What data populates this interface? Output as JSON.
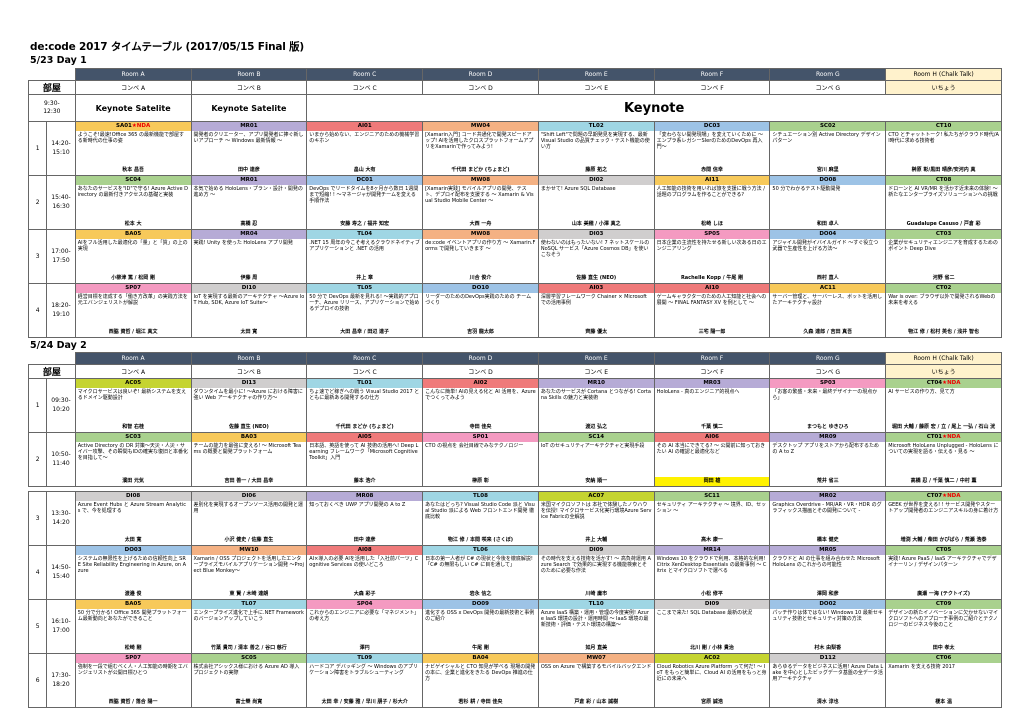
{
  "title": "de:code 2017 タイムテーブル (2017/05/15 Final 版)",
  "rooms": [
    "Room A",
    "Room B",
    "Room C",
    "Room D",
    "Room E",
    "Room F",
    "Room G",
    "Room H (Chalk Talk)"
  ],
  "corners": [
    "コンベ A",
    "コンベ B",
    "コンベ C",
    "コンベ D",
    "コンベ E",
    "コンベ F",
    "コンベ G",
    "いちょう"
  ],
  "bukaku": "部屋",
  "colors": {
    "yellow": "#f7c95a",
    "purple": "#b6abd6",
    "red": "#ef7a7a",
    "orange": "#f4b183",
    "cyan": "#9fd6e4",
    "blue": "#9dc3e6",
    "green": "#a9d18e",
    "gray": "#d0cece",
    "lime": "#c5d431",
    "teal": "#8fd9c8",
    "pink": "#f49ac1",
    "header": "#44546a",
    "chalk": "#fff2cc"
  },
  "days": [
    {
      "title": "5/23 Day 1",
      "keynote": {
        "time": "9:30-\n12:30",
        "room_a": "Keynote Satelite",
        "room_b": "Keynote Satelite",
        "main": "Keynote"
      },
      "rows": [
        {
          "n": "1",
          "time": "14:20-\n15:10",
          "s": [
            {
              "c": "SA01",
              "tag": "★NDA",
              "col": "yellow",
              "d": "ようこそ!最速!Office 365 の最新機能で部屋する新時代の仕事の姿",
              "sp": "秋本 昌吾"
            },
            {
              "c": "MR01",
              "col": "purple",
              "d": "開発者のクリエーター、アプリ開発者に捧ぐ新しいアプローチ ～ Windows 最新情報 ～",
              "sp": "田中 達彦"
            },
            {
              "c": "AI01",
              "col": "red",
              "d": "いまから始めない、エンジニアのための機械学習のキホン",
              "sp": "畠山 大有"
            },
            {
              "c": "MW04",
              "col": "orange",
              "d": "[Xamarin入門] コード共通化で開発スピードアップ! AIを活用したクロスプラットフォームアプリをXamarinで作ってみよう!",
              "sp": "千代田 まどか (ちょまど)"
            },
            {
              "c": "TL02",
              "col": "cyan",
              "d": "\"Shift Left\"で問題の早期発見を実現する、最新 Visual Studio の品質チェック・テスト機能の使い方",
              "sp": "藤原 拓之"
            },
            {
              "c": "DC03",
              "col": "blue",
              "d": "「変わらない開発現場」を変えていくために ～エンプラ系レガシーSIerのためのDevOps 再入門～",
              "sp": "赤間 信幸"
            },
            {
              "c": "SC02",
              "col": "green",
              "d": "シチュエーション別 Active Directory デザインパターン",
              "sp": "宮川 麻里"
            },
            {
              "c": "CT10",
              "col": "green",
              "d": "CTO とチャットトーク! 私たちがクラウド時代/AI時代に求める技術者",
              "sp": "榊原 彰/黒田 晴彦/安河内 真"
            }
          ]
        },
        {
          "n": "2",
          "time": "15:40-\n16:30",
          "s": [
            {
              "c": "SC04",
              "col": "green",
              "d": "あなたのサービスを\"ID\"で守る! Azure Active Directory の最新付きアクセスの基礎と実装",
              "sp": "松本 大"
            },
            {
              "c": "MR01",
              "col": "purple",
              "d": "本気で始める HoloLens・プラン・設計・開発の進め方 ～",
              "sp": "高橋 忍"
            },
            {
              "c": "DC01",
              "col": "blue",
              "d": "DevOps でリードタイムを8ヶ月から数日 1週間まで短縮! ! ～マネージャが開発チームを変える手順作法",
              "sp": "安藤 寿之 / 福井 知宏"
            },
            {
              "c": "MW08",
              "col": "orange",
              "d": "[Xamarin実践] モバイルアプリの開発、テスト、デプロイ配布を支援する ～ Xamarin & Visual Studio Mobile Center ～",
              "sp": "大西 一舟"
            },
            {
              "c": "DI02",
              "col": "gray",
              "d": "まかせて! Azure SQL Database",
              "sp": "山本 美穂 / 小澤 真之"
            },
            {
              "c": "AI11",
              "col": "yellow",
              "d": "人工知能の技術を用いれば旅を支援に戦う方法 / 話題のプログラムを作ることができる?",
              "sp": "松崎 しほ"
            },
            {
              "c": "DO08",
              "col": "blue",
              "d": "50 分でわかるテスト駆動開発",
              "sp": "和田 卓人"
            },
            {
              "c": "CT08",
              "col": "green",
              "d": "ドローンと AI VR/MR を活かす近未来の体験! ～ 新たなエンタープライズソリューションへの挑戦",
              "sp": "Guadalupe Casuso / 戸倉 彩"
            }
          ]
        },
        {
          "n": "3",
          "time": "17:00-\n17:50",
          "s": [
            {
              "c": "BA05",
              "col": "yellow",
              "d": "AIをフル活用した最適化の「量」と「質」の上の実現",
              "sp": "小柳津 篤 / 松岡 剛"
            },
            {
              "c": "MR04",
              "col": "purple",
              "d": "実践! Unity を使った HoloLens アプリ開発",
              "sp": "伊藤 周"
            },
            {
              "c": "TL04",
              "col": "cyan",
              "d": ".NET 15 周年の今こそ考えるクラウドネイティブ アプリケーションと .NET の活用",
              "sp": "井上 章"
            },
            {
              "c": "MW08",
              "col": "orange",
              "d": "de:code イベントアプリの作り方 ～ Xamarin.Forms で開発していきます ～",
              "sp": "川合 俊介"
            },
            {
              "c": "DI03",
              "col": "gray",
              "d": "使わないのはもったいない! 7 ネットスケールの NoSQL サービス「Azure Cosmos DB」を使いこなそう",
              "sp": "佐藤 直生 (NEO)"
            },
            {
              "c": "SP05",
              "col": "pink",
              "d": "日本企業の主流性を持たせる新しい次ある日のエンジニアリング",
              "sp": "Rachelle Kopp / 牛尾 剛"
            },
            {
              "c": "DO04",
              "col": "blue",
              "d": "アジャイル開発がイバイルガイド ～すぐ役立つ武器で生産性を上げる方法～",
              "sp": "西村 直人"
            },
            {
              "c": "CT03",
              "col": "green",
              "d": "企業がセキュリティエンジニアを育成するためのポイント Deep Dive",
              "sp": "河野 省二"
            }
          ]
        },
        {
          "n": "4",
          "time": "18:20-\n19:10",
          "s": [
            {
              "c": "SP07",
              "col": "pink",
              "d": "経営目標を達成する「働き方改革」の実践方法を元エバンジェリストが解説",
              "sp": "西脇 資哲 / 堀江 真文"
            },
            {
              "c": "DI10",
              "col": "gray",
              "d": "IoT を実現する最新のアーキテクチャ ～Azure IoT Hub, SDK, Azure IoT Suite～",
              "sp": "太田 寛"
            },
            {
              "c": "TL05",
              "col": "cyan",
              "d": "50 分で DevOps 最新を見れる! ～実践的アプローチ、Azure リリース、アプリケーションで始めるデプロイの技術",
              "sp": "大田 昌幸 / 田辺 達子"
            },
            {
              "c": "DO10",
              "col": "blue",
              "d": "リーダーのためのDevOps実践のための チームづくり",
              "sp": "吉羽 龍太郎"
            },
            {
              "c": "AI03",
              "col": "red",
              "d": "深層学習フレームワーク Chainer × Microsoft での活用事例",
              "sp": "齊藤 優太"
            },
            {
              "c": "AI10",
              "col": "red",
              "d": "ゲームキャラクターのための人工知能と社会への展開 ～ FINAL FANTASY XV を例として ～",
              "sp": "三宅 陽一郎"
            },
            {
              "c": "AC11",
              "col": "yellow",
              "d": "サーバー管理と、サーバーレス、ボットを活用したアーキテクチャ設計",
              "sp": "久森 達郎 / 吉田 真吾"
            },
            {
              "c": "CT02",
              "col": "green",
              "d": "War is over: ブラウザ以外で開発されるWebの未来を考える",
              "sp": "物江 修 / 松村 英也 / 浅井 智也"
            }
          ]
        }
      ]
    },
    {
      "title": "5/24 Day 2",
      "rows": [
        {
          "n": "1",
          "time": "09:30-\n10:20",
          "s": [
            {
              "c": "AC05",
              "col": "lime",
              "d": "マイクロサービスは良いぞ! 最新システムを支えるドメイン駆動設計",
              "sp": "和智 右桂"
            },
            {
              "c": "DI13",
              "col": "gray",
              "d": "ダウンタイムを最小に! ～Azure における障害に強い Web アーキテクチャの作り方～",
              "sp": "佐藤 直生 (NEO)"
            },
            {
              "c": "TL01",
              "col": "cyan",
              "d": "ちょ速でど稼ぎへの戦う Visual Studio 2017 とともに最新ある開発するの仕方",
              "sp": "千代田 まどか (ちょまど)"
            },
            {
              "c": "AI02",
              "col": "red",
              "d": "こんなに簡単! AIの見える化と AI 活用を、Azure でつくってみよう",
              "sp": "寺田 佳央"
            },
            {
              "c": "MR10",
              "col": "purple",
              "d": "あなたのサービスが Cortana とつながる! Cortana Skills の魅力と実装術",
              "sp": "渡辺 弘之"
            },
            {
              "c": "MR03",
              "col": "purple",
              "d": "HoloLens - 真のエンジニア的視点へ",
              "sp": "千葉 慎二"
            },
            {
              "c": "SP03",
              "col": "pink",
              "d": "「お客の繁盛・未来・最終デザイナーの現点から」",
              "sp": "まつもと ゆきひろ"
            },
            {
              "c": "CT04",
              "tag": "★NDA",
              "col": "green",
              "d": "AI サービスの作り方、見て方",
              "sp": "堀田 大輔 / 藤原 宏 / 立 / 尾上 一弘 / 石山 洸"
            }
          ]
        },
        {
          "n": "2",
          "time": "10:50-\n11:40",
          "s": [
            {
              "c": "SC03",
              "col": "green",
              "d": "Active Directory の DR 対策～天災・人災・サイバー攻撃、その瞬間もIDの確実な復旧と本番化を目指して～",
              "sp": "濱田 元気"
            },
            {
              "c": "BA03",
              "col": "yellow",
              "d": "チームの能力を最強に変える! ～ Microsoft Teams の概要と開発プラットフォーム",
              "sp": "吉田 善一 / 大田 昌幸"
            },
            {
              "c": "AI05",
              "col": "red",
              "d": "日本語、英語を使って AI 技術の活用へ! Deep Learning フレームワーク「Microsoft Cognitive Toolkit」入門",
              "sp": "藤本 浩介"
            },
            {
              "c": "SP01",
              "col": "pink",
              "d": "CTO の視点を 会社目線でみなテクノロジー",
              "sp": "榊原 彰"
            },
            {
              "c": "SC14",
              "col": "green",
              "d": "IoT のセキュリティアーキテクチャと実現手段",
              "sp": "安納 順一"
            },
            {
              "c": "AI06",
              "col": "red",
              "d": "その AI 本当にできてる? ～ 公開前に知っておきたい AI の確認と最適化など",
              "sp": "岡田 雄",
              "hi": true
            },
            {
              "c": "MR09",
              "col": "purple",
              "d": "デスクトップ アプリをストアから配布するための A to Z",
              "sp": "荒井 省三"
            },
            {
              "c": "CT01",
              "tag": "★NDA",
              "col": "green",
              "d": "Microsoft HoloLens Unplugged - HoloLens についての実現を語る・伝える・見る ～",
              "sp": "高橋 忍 / 千葉 慎二 / 中村 薫"
            }
          ]
        },
        {
          "gap": true
        },
        {
          "n": "3",
          "time": "13:30-\n14:20",
          "s": [
            {
              "c": "DI08",
              "col": "gray",
              "d": "Azure Event Hubs と Azure Stream Analytics で、今を処理する",
              "sp": "太田 寛"
            },
            {
              "c": "DI06",
              "col": "gray",
              "d": "差別化を実現するオープンソース活用の開発と運用",
              "sp": "小沢 健史 / 佐藤 直生"
            },
            {
              "c": "MR08",
              "col": "purple",
              "d": "知っておくべき UWP アプリ開発の A to Z",
              "sp": "田中 達彦"
            },
            {
              "c": "TL08",
              "col": "cyan",
              "d": "あなたはどっち? Visual Studio Code 派と Visual Studio 派による Web フロントエンド開発 徹底比較",
              "sp": "物江 修 / 本間 咲来 (さくぼ)"
            },
            {
              "c": "AC07",
              "col": "lime",
              "d": "米国マイクロソフトは 本社で体験したノウハウを伝授! マイクロサービス化実行環境Azure Service Fabricの全解説",
              "sp": "井上 大輔"
            },
            {
              "c": "SC11",
              "col": "green",
              "d": "セキュリティ アーキテクチャ ～ 境界、ID、セッション ～",
              "sp": "高木 康一"
            },
            {
              "c": "MR02",
              "col": "purple",
              "d": "Graphics Overdrive - MR/AR・VR・HDR のグラフィックス描画とその開発について -",
              "sp": "橋本 健史"
            },
            {
              "c": "CT07",
              "tag": "★NDA",
              "col": "green",
              "d": "GEEK が世界を変える! ! サービス開発やスタートアップ開発者のエンジニアスキルの身に着け方",
              "sp": "増渕 大輔 / 柴田 かぴばら / 荒瀬 浩泰"
            }
          ]
        },
        {
          "n": "4",
          "time": "14:50-\n15:40",
          "s": [
            {
              "c": "DO03",
              "col": "blue",
              "d": "システムの無限性を上げるための信頼性向上 SRE Site Reliability Engineering in Azure, on Azure",
              "sp": "渡邉 俊"
            },
            {
              "c": "MW10",
              "col": "orange",
              "d": "Xamarin / OSS プロジェクトを活用したエンタープライズモバイルアプリケーション開発 ～Project Blue Monkey～",
              "sp": "東 賢 / 木崎 達朗"
            },
            {
              "c": "AI08",
              "col": "red",
              "d": "AI×導入の必要 AIを活用した「入社前パーツ」Cognitive Services の使いどころ",
              "sp": "大森 彩子"
            },
            {
              "c": "TL06",
              "col": "cyan",
              "d": "日本の第一人者が C# の現状と今後を徹底解説! 「C# の無限もしい C# に目を通して」",
              "sp": "岩永 信之"
            },
            {
              "c": "DI09",
              "col": "gray",
              "d": "その時代を支える技術を活かす! ～ 高負荷運用 Azure Search で効果的に実現する機能検索とそのために必要な作法",
              "sp": "川崎 庸市"
            },
            {
              "c": "MR14",
              "col": "purple",
              "d": "Windows 10 をクラウドで利用、本格的な利用! Citrix XenDesktop Essentials の最新事例 ～ Citrix とマイクロソフトで選べる",
              "sp": "小松 修平"
            },
            {
              "c": "MR05",
              "col": "purple",
              "d": "クラウドと AI の仕事を組み合わせた Microsoft HoloLens のこれからの可能性",
              "sp": "澤岡 和彦"
            },
            {
              "c": "CT05",
              "col": "green",
              "d": "実践! Azure PaaS / IaaS アーキテクチャでデザイナーリン / デザインパターン",
              "sp": "廣瀬 一海 (テクトイズ)"
            }
          ]
        },
        {
          "n": "5",
          "time": "16:10-\n17:00",
          "s": [
            {
              "c": "BA05",
              "col": "yellow",
              "d": "50 分で分かる! Office 365 開発プラットフォーム最新動向とあなたができること",
              "sp": "松崎 剛"
            },
            {
              "c": "TL07",
              "col": "cyan",
              "d": "エンタープライズ進化で上手に.NET Framework のバージョンアップしていこう",
              "sp": "竹葉 貴司 / 清本 善之 / 谷口 慈行"
            },
            {
              "c": "SP04",
              "col": "pink",
              "d": "これからのエンジニアに必要な「マネジメント」の考え方",
              "sp": "澤円"
            },
            {
              "c": "DO09",
              "col": "blue",
              "d": "進化する OSS x DevOps 開発の最新技術と事例のご紹介",
              "sp": "牛尾 剛"
            },
            {
              "c": "TL10",
              "col": "cyan",
              "d": "Azure IaaS 構築・運用・管理の今度実例! Azure IaaS 環境の設計・運用時間 ～ IaaS 環境の最新技術・評価・テスト環境の構築～",
              "sp": "如月 直美"
            },
            {
              "c": "DI09",
              "col": "gray",
              "d": "ここまで来た! SQL Database 最新の状況",
              "sp": "北川 剛 / 小林 貴治"
            },
            {
              "c": "DO02",
              "col": "blue",
              "d": "パッチ作りは体ではない! Windows 10 最新セキュリティ技術とセキュリティ対策の方法",
              "sp": "村木 由梨香"
            },
            {
              "c": "CT09",
              "col": "green",
              "d": "デザインの新たイノベーションに欠かせないマイクロソフトへのアプローチ事例のご紹介とテクノロジーのビジネス今後のこと",
              "sp": "田中 孝太"
            }
          ]
        },
        {
          "n": "6",
          "time": "17:30-\n18:20",
          "s": [
            {
              "c": "SP07",
              "col": "pink",
              "d": "強制を一段で組むべく人・人工知能の時期をエバンジェリストが公開日標ひとつ",
              "sp": "西脇 資哲 / 落合 陽一"
            },
            {
              "c": "SC05",
              "col": "green",
              "d": "株式会社アシックス様における Azure AD 導入プロジェクトの実際",
              "sp": "富士榮 尚寛"
            },
            {
              "c": "TL09",
              "col": "cyan",
              "d": "ハードコア デバッギング ～ Windows のアプリケーション障害をトラブルシューティング",
              "sp": "太田 幸 / 安藤 雅 / 早川 朋子 / 杉大介"
            },
            {
              "c": "BA04",
              "col": "yellow",
              "d": "ナビゲイシャルと CTO 知見が学べる 現場の開発の本に、企業と進化をきたる DevOps 推進の仕方",
              "sp": "若杉 耕 / 寺田 佳央"
            },
            {
              "c": "MW07",
              "col": "orange",
              "d": "OSS on Azure で構築するモバイルバックエンド",
              "sp": "戸倉 彩 / 山本 誠樹"
            },
            {
              "c": "AC02",
              "col": "lime",
              "d": "Cloud Robotics Azure Platform って何だ! ～ IoT をもっと簡単に、Cloud AI の活用をもっと身近にの未来へ",
              "sp": "宮原 誠浩"
            },
            {
              "c": "D112",
              "col": "gray",
              "d": "あらゆるデータをビジネスに活用! Azure Data Lake を中心としたビッグデータ基盤の全データ活用アーキテクチャ",
              "sp": "清水 淳也"
            },
            {
              "c": "CT06",
              "col": "green",
              "d": "Xamarin を支える技術 2017",
              "sp": "榎本 温"
            }
          ]
        }
      ]
    }
  ]
}
